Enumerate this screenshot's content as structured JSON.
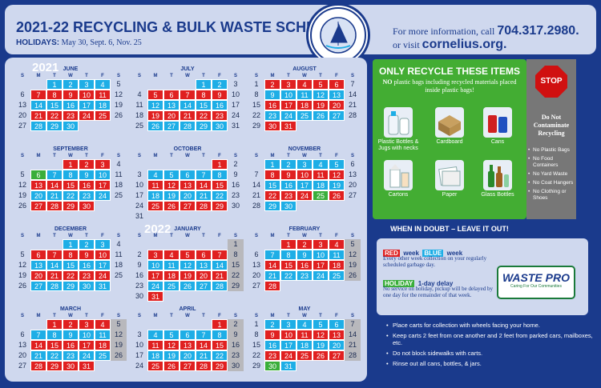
{
  "header": {
    "title": "2021-22 RECYCLING & BULK WASTE SCHEDULE",
    "holidays_label": "HOLIDAYS:",
    "holidays_dates": "May 30, Sept. 6, Nov. 25",
    "info_prefix": "For more information, call",
    "phone": "704.317.2980.",
    "info_web_prefix": "or visit",
    "website": "cornelius.org."
  },
  "seal": {
    "text": "CORNELIUS NORTH CAROLINA"
  },
  "calendar": {
    "years": {
      "y2021": "2021",
      "y2022": "2022"
    },
    "dow": [
      "S",
      "M",
      "T",
      "W",
      "T",
      "F",
      "S"
    ],
    "months": [
      {
        "name": "JUNE",
        "offset": 2,
        "days": 30,
        "colors": {
          "1": "b",
          "2": "b",
          "3": "b",
          "4": "b",
          "7": "r",
          "8": "r",
          "9": "r",
          "10": "r",
          "11": "r",
          "14": "b",
          "15": "b",
          "16": "b",
          "17": "b",
          "18": "b",
          "21": "r",
          "22": "r",
          "23": "r",
          "24": "r",
          "25": "r",
          "28": "b",
          "29": "b",
          "30": "b"
        }
      },
      {
        "name": "JULY",
        "offset": 4,
        "days": 31,
        "colors": {
          "1": "b",
          "2": "b",
          "5": "r",
          "6": "r",
          "7": "r",
          "8": "r",
          "9": "r",
          "12": "b",
          "13": "b",
          "14": "b",
          "15": "b",
          "16": "b",
          "19": "r",
          "20": "r",
          "21": "r",
          "22": "r",
          "23": "r",
          "26": "b",
          "27": "b",
          "28": "b",
          "29": "b",
          "30": "b"
        }
      },
      {
        "name": "AUGUST",
        "offset": 0,
        "days": 31,
        "colors": {
          "2": "r",
          "3": "r",
          "4": "r",
          "5": "r",
          "6": "r",
          "9": "b",
          "10": "b",
          "11": "b",
          "12": "b",
          "13": "b",
          "16": "r",
          "17": "r",
          "18": "r",
          "19": "r",
          "20": "r",
          "23": "b",
          "24": "b",
          "25": "b",
          "26": "b",
          "27": "b",
          "30": "r",
          "31": "r"
        }
      },
      {
        "name": "SEPTEMBER",
        "offset": 3,
        "days": 30,
        "colors": {
          "1": "r",
          "2": "r",
          "3": "r",
          "6": "g",
          "7": "b",
          "8": "b",
          "9": "b",
          "10": "b",
          "13": "r",
          "14": "r",
          "15": "r",
          "16": "r",
          "17": "r",
          "20": "b",
          "21": "b",
          "22": "b",
          "23": "b",
          "24": "b",
          "27": "r",
          "28": "r",
          "29": "r",
          "30": "r"
        }
      },
      {
        "name": "OCTOBER",
        "offset": 5,
        "days": 31,
        "colors": {
          "1": "r",
          "4": "b",
          "5": "b",
          "6": "b",
          "7": "b",
          "8": "b",
          "11": "r",
          "12": "r",
          "13": "r",
          "14": "r",
          "15": "r",
          "18": "b",
          "19": "b",
          "20": "b",
          "21": "b",
          "22": "b",
          "25": "r",
          "26": "r",
          "27": "r",
          "28": "r",
          "29": "r"
        }
      },
      {
        "name": "NOVEMBER",
        "offset": 1,
        "days": 30,
        "colors": {
          "1": "b",
          "2": "b",
          "3": "b",
          "4": "b",
          "5": "b",
          "8": "r",
          "9": "r",
          "10": "r",
          "11": "r",
          "12": "r",
          "15": "b",
          "16": "b",
          "17": "b",
          "18": "b",
          "19": "b",
          "22": "r",
          "23": "r",
          "24": "r",
          "25": "g",
          "26": "r",
          "29": "b",
          "30": "b"
        }
      },
      {
        "name": "DECEMBER",
        "offset": 3,
        "days": 31,
        "colors": {
          "1": "b",
          "2": "b",
          "3": "b",
          "6": "r",
          "7": "r",
          "8": "r",
          "9": "r",
          "10": "r",
          "13": "b",
          "14": "b",
          "15": "b",
          "16": "b",
          "17": "b",
          "20": "r",
          "21": "r",
          "22": "r",
          "23": "r",
          "24": "r",
          "27": "b",
          "28": "b",
          "29": "b",
          "30": "b",
          "31": "b"
        }
      },
      {
        "name": "JANUARY",
        "offset": 6,
        "days": 31,
        "colors": {
          "1": "h",
          "3": "r",
          "4": "r",
          "5": "r",
          "6": "r",
          "7": "r",
          "8": "h",
          "10": "b",
          "11": "b",
          "12": "b",
          "13": "b",
          "14": "b",
          "15": "h",
          "17": "r",
          "18": "r",
          "19": "r",
          "20": "r",
          "21": "r",
          "22": "h",
          "24": "b",
          "25": "b",
          "26": "b",
          "27": "b",
          "28": "b",
          "29": "h",
          "31": "r"
        }
      },
      {
        "name": "FEBRUARY",
        "offset": 2,
        "days": 28,
        "colors": {
          "1": "r",
          "2": "r",
          "3": "r",
          "4": "r",
          "5": "h",
          "7": "b",
          "8": "b",
          "9": "b",
          "10": "b",
          "11": "b",
          "12": "h",
          "14": "r",
          "15": "r",
          "16": "r",
          "17": "r",
          "18": "r",
          "19": "h",
          "21": "b",
          "22": "b",
          "23": "b",
          "24": "b",
          "25": "b",
          "26": "h",
          "28": "r"
        }
      },
      {
        "name": "MARCH",
        "offset": 2,
        "days": 31,
        "colors": {
          "1": "r",
          "2": "r",
          "3": "r",
          "4": "r",
          "5": "h",
          "7": "b",
          "8": "b",
          "9": "b",
          "10": "b",
          "11": "b",
          "12": "h",
          "14": "r",
          "15": "r",
          "16": "r",
          "17": "r",
          "18": "r",
          "19": "h",
          "21": "b",
          "22": "b",
          "23": "b",
          "24": "b",
          "25": "b",
          "26": "h",
          "28": "r",
          "29": "r",
          "30": "r",
          "31": "r"
        }
      },
      {
        "name": "APRIL",
        "offset": 5,
        "days": 30,
        "colors": {
          "1": "r",
          "2": "h",
          "4": "b",
          "5": "b",
          "6": "b",
          "7": "b",
          "8": "b",
          "9": "h",
          "11": "r",
          "12": "r",
          "13": "r",
          "14": "r",
          "15": "r",
          "16": "h",
          "18": "b",
          "19": "b",
          "20": "b",
          "21": "b",
          "22": "b",
          "23": "h",
          "25": "r",
          "26": "r",
          "27": "r",
          "28": "r",
          "29": "r",
          "30": "h"
        }
      },
      {
        "name": "MAY",
        "offset": 0,
        "days": 31,
        "colors": {
          "2": "b",
          "3": "b",
          "4": "b",
          "5": "b",
          "6": "b",
          "7": "h",
          "9": "r",
          "10": "r",
          "11": "r",
          "12": "r",
          "13": "r",
          "14": "h",
          "16": "b",
          "17": "b",
          "18": "b",
          "19": "b",
          "20": "b",
          "21": "h",
          "23": "r",
          "24": "r",
          "25": "r",
          "26": "r",
          "27": "r",
          "28": "h",
          "30": "g",
          "31": "b"
        }
      }
    ]
  },
  "recycle": {
    "title": "ONLY RECYCLE THESE ITEMS",
    "subtitle_bold": "NO",
    "subtitle": "plastic bags including recycled materials placed inside plastic bags!",
    "items": [
      "Plastic Bottles & Jugs with necks",
      "Cardboard",
      "Cans",
      "Cartons",
      "Paper",
      "Glass Bottles"
    ]
  },
  "stop_panel": {
    "sign": "STOP",
    "heading": "Do Not Contaminate Recycling",
    "list": [
      "No Plastic Bags",
      "No Food Containers",
      "No Yard Waste",
      "No Coat Hangers",
      "No Clothing or Shoes"
    ]
  },
  "doubt": "WHEN IN DOUBT – LEAVE IT OUT!",
  "legend": {
    "red_tag": "RED",
    "week1": "week",
    "blue_tag": "BLUE",
    "week2": "week",
    "desc": "Every other week collection on your regularly scheduled garbage day.",
    "holiday_tag": "HOLIDAY",
    "delay": "1-day delay",
    "holiday_desc": "No service on holiday, pickup will be delayed by one day for the remainder of that week."
  },
  "wastepro": {
    "name": "WASTE PRO",
    "tagline": "Caring For Our Communities"
  },
  "tips": [
    "Place carts for collection with wheels facing your home.",
    "Keep carts 2 feet from one another and 2 feet from parked cars, mailboxes, etc.",
    "Do not block sidewalks with carts.",
    "Rinse out all cans, bottles, & jars."
  ]
}
